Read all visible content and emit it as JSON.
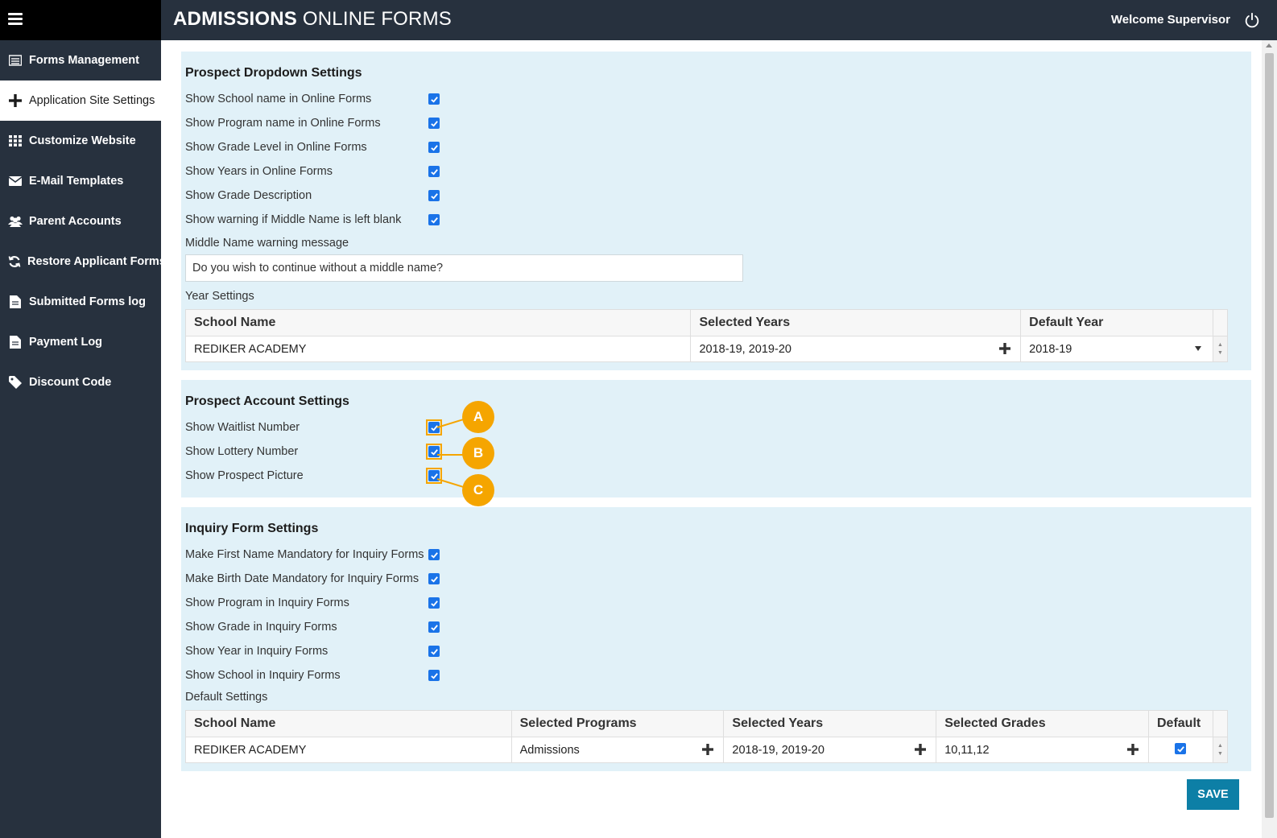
{
  "header": {
    "title_bold": "ADMISSIONS",
    "title_rest": "ONLINE FORMS",
    "welcome": "Welcome Supervisor"
  },
  "sidebar": {
    "items": [
      {
        "label": "Forms Management",
        "icon": "list-icon"
      },
      {
        "label": "Application Site Settings",
        "icon": "plus-icon",
        "active": true
      },
      {
        "label": "Customize Website",
        "icon": "grid-icon"
      },
      {
        "label": "E-Mail Templates",
        "icon": "envelope-icon"
      },
      {
        "label": "Parent Accounts",
        "icon": "users-icon"
      },
      {
        "label": "Restore Applicant Forms",
        "icon": "refresh-icon"
      },
      {
        "label": "Submitted Forms log",
        "icon": "document-icon"
      },
      {
        "label": "Payment Log",
        "icon": "document-icon"
      },
      {
        "label": "Discount Code",
        "icon": "tag-icon"
      }
    ]
  },
  "prospect_dropdown": {
    "title": "Prospect Dropdown Settings",
    "options": [
      {
        "label": "Show School name in Online Forms",
        "checked": true
      },
      {
        "label": "Show Program name in Online Forms",
        "checked": true
      },
      {
        "label": "Show Grade Level in Online Forms",
        "checked": true
      },
      {
        "label": "Show Years in Online Forms",
        "checked": true
      },
      {
        "label": "Show Grade Description",
        "checked": true
      },
      {
        "label": "Show warning if Middle Name is left blank",
        "checked": true
      }
    ],
    "warning_label": "Middle Name warning message",
    "warning_value": "Do you wish to continue without a middle name?",
    "year_settings_label": "Year Settings",
    "year_table": {
      "headers": [
        "School Name",
        "Selected Years",
        "Default Year"
      ],
      "rows": [
        {
          "school": "REDIKER ACADEMY",
          "years": "2018-19, 2019-20",
          "default_year": "2018-19"
        }
      ]
    }
  },
  "prospect_account": {
    "title": "Prospect Account Settings",
    "options": [
      {
        "label": "Show Waitlist Number",
        "checked": true,
        "callout": "A"
      },
      {
        "label": "Show Lottery Number",
        "checked": true,
        "callout": "B"
      },
      {
        "label": "Show Prospect Picture",
        "checked": true,
        "callout": "C"
      }
    ]
  },
  "inquiry_form": {
    "title": "Inquiry Form Settings",
    "options": [
      {
        "label": "Make First Name Mandatory for Inquiry Forms",
        "checked": true
      },
      {
        "label": "Make Birth Date Mandatory for Inquiry Forms",
        "checked": true
      },
      {
        "label": "Show Program in Inquiry Forms",
        "checked": true
      },
      {
        "label": "Show Grade in Inquiry Forms",
        "checked": true
      },
      {
        "label": "Show Year in Inquiry Forms",
        "checked": true
      },
      {
        "label": "Show School in Inquiry Forms",
        "checked": true
      }
    ],
    "default_settings_label": "Default Settings",
    "default_table": {
      "headers": [
        "School Name",
        "Selected Programs",
        "Selected Years",
        "Selected Grades",
        "Default"
      ],
      "rows": [
        {
          "school": "REDIKER ACADEMY",
          "programs": "Admissions",
          "years": "2018-19, 2019-20",
          "grades": "10,11,12",
          "default": true
        }
      ]
    }
  },
  "actions": {
    "save_label": "SAVE"
  },
  "colors": {
    "topbar": "#27313e",
    "panel": "#e1f1f8",
    "checkbox": "#1a73e8",
    "callout": "#f5a500",
    "save": "#0d7fa6"
  }
}
